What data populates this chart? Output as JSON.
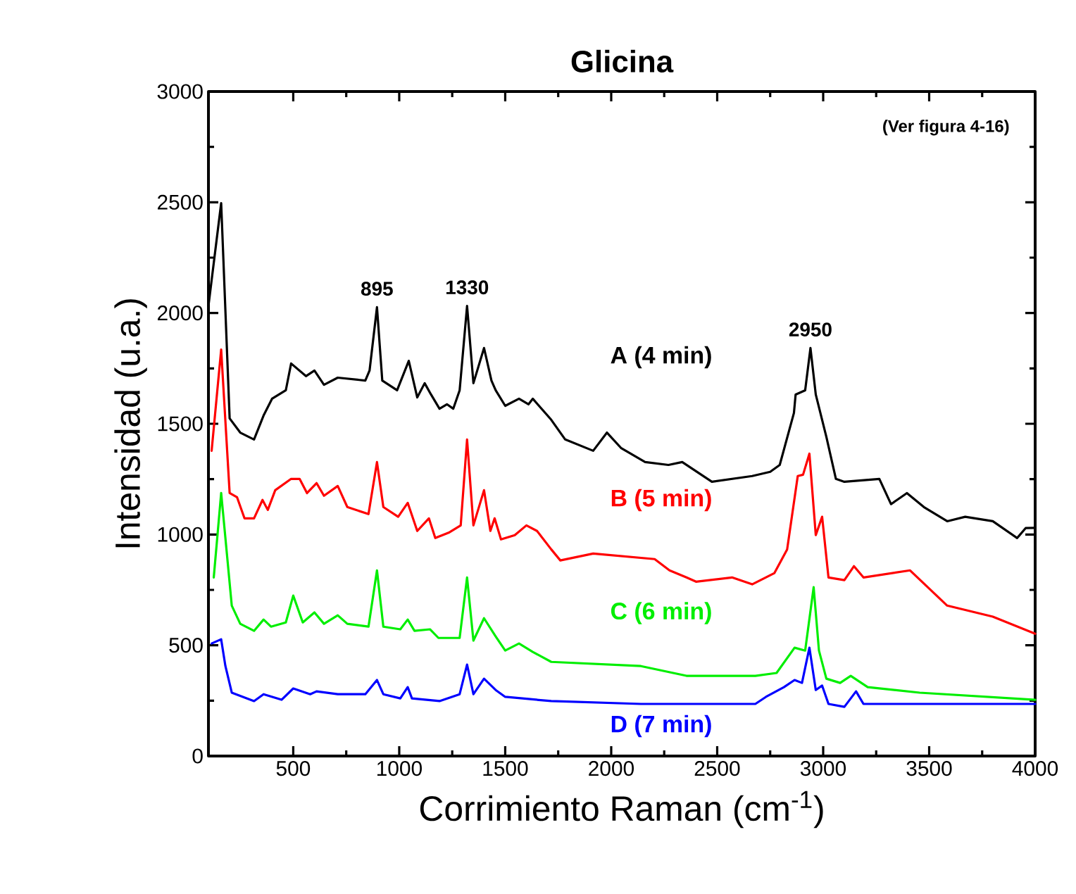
{
  "chart_data": {
    "type": "line",
    "title": "Glicina",
    "xlabel": "Corrimiento Raman (cm$^{-1}$)",
    "ylabel": "Intensidad (u.a.)",
    "xlim": [
      100,
      4000
    ],
    "xticks": [
      500,
      1000,
      1500,
      2000,
      2500,
      3000,
      3500,
      4000
    ],
    "ylim": [
      0,
      3000
    ],
    "yticks": [
      0,
      500,
      1000,
      1500,
      2000,
      2500,
      3000
    ],
    "line_style": "solid",
    "annotations": [
      {
        "text": "895",
        "x": 895,
        "y": 2026
      },
      {
        "text": "1330",
        "x": 1320,
        "y": 2032
      },
      {
        "text": "2950",
        "x": 2940,
        "y": 1842
      },
      "(Ver figura 4-16)"
    ],
    "series": [
      {
        "name": "A (4 min)",
        "color": "#000000",
        "x": [
          100,
          160,
          200,
          250,
          315,
          360,
          400,
          465,
          490,
          560,
          600,
          645,
          710,
          840,
          860,
          895,
          920,
          990,
          1045,
          1085,
          1120,
          1150,
          1190,
          1225,
          1255,
          1285,
          1320,
          1350,
          1400,
          1435,
          1455,
          1500,
          1565,
          1610,
          1630,
          1717,
          1783,
          1915,
          1980,
          2046,
          2160,
          2270,
          2335,
          2475,
          2665,
          2750,
          2795,
          2862,
          2870,
          2915,
          2940,
          2965,
          3015,
          3060,
          3100,
          3265,
          3320,
          3395,
          3475,
          3585,
          3670,
          3800,
          3915,
          3955,
          4000
        ],
        "values": [
          2032,
          2496,
          1524,
          1460,
          1429,
          1537,
          1613,
          1651,
          1772,
          1715,
          1740,
          1676,
          1708,
          1695,
          1740,
          2026,
          1695,
          1651,
          1784,
          1619,
          1683,
          1632,
          1568,
          1588,
          1568,
          1651,
          2032,
          1683,
          1842,
          1695,
          1651,
          1581,
          1613,
          1588,
          1613,
          1518,
          1429,
          1378,
          1460,
          1391,
          1327,
          1314,
          1327,
          1238,
          1264,
          1283,
          1314,
          1549,
          1632,
          1651,
          1842,
          1632,
          1441,
          1251,
          1238,
          1251,
          1137,
          1187,
          1124,
          1060,
          1080,
          1060,
          984,
          1029,
          1030
        ]
      },
      {
        "name": "B (5 min)",
        "color": "#ff0000",
        "x": [
          115,
          160,
          200,
          235,
          270,
          315,
          355,
          380,
          415,
          490,
          530,
          565,
          610,
          645,
          710,
          755,
          855,
          895,
          925,
          995,
          1040,
          1085,
          1140,
          1170,
          1237,
          1290,
          1320,
          1350,
          1400,
          1430,
          1450,
          1480,
          1545,
          1600,
          1650,
          1717,
          1760,
          1915,
          2205,
          2275,
          2355,
          2400,
          2570,
          2665,
          2770,
          2830,
          2880,
          2905,
          2935,
          2965,
          2995,
          3025,
          3100,
          3145,
          3190,
          3410,
          3585,
          3800,
          4000
        ],
        "values": [
          1378,
          1835,
          1187,
          1168,
          1073,
          1073,
          1156,
          1111,
          1200,
          1251,
          1251,
          1187,
          1232,
          1175,
          1219,
          1124,
          1092,
          1327,
          1124,
          1080,
          1143,
          1016,
          1073,
          984,
          1010,
          1041,
          1429,
          1041,
          1200,
          1016,
          1073,
          978,
          997,
          1041,
          1016,
          933,
          883,
          914,
          889,
          838,
          806,
          787,
          806,
          775,
          826,
          933,
          1264,
          1270,
          1365,
          997,
          1080,
          806,
          794,
          857,
          806,
          838,
          679,
          629,
          552
        ]
      },
      {
        "name": "C (6 min)",
        "color": "#00ee00",
        "x": [
          125,
          160,
          210,
          250,
          315,
          360,
          395,
          465,
          500,
          545,
          600,
          645,
          710,
          755,
          855,
          895,
          925,
          1005,
          1040,
          1072,
          1145,
          1185,
          1285,
          1320,
          1350,
          1400,
          1455,
          1500,
          1565,
          1630,
          1717,
          2140,
          2355,
          2680,
          2780,
          2865,
          2915,
          2955,
          2980,
          3015,
          3080,
          3130,
          3210,
          3455,
          4000
        ],
        "values": [
          806,
          1187,
          679,
          597,
          565,
          616,
          584,
          603,
          724,
          603,
          648,
          597,
          635,
          597,
          584,
          838,
          584,
          572,
          616,
          565,
          572,
          533,
          533,
          806,
          521,
          622,
          540,
          476,
          508,
          470,
          425,
          406,
          362,
          362,
          375,
          489,
          476,
          762,
          476,
          349,
          330,
          362,
          311,
          286,
          254
        ]
      },
      {
        "name": "D (7 min)",
        "color": "#0000ff",
        "x": [
          115,
          160,
          180,
          210,
          315,
          360,
          445,
          500,
          580,
          610,
          710,
          840,
          895,
          925,
          1005,
          1040,
          1060,
          1190,
          1285,
          1320,
          1350,
          1400,
          1455,
          1500,
          1717,
          2140,
          2680,
          2730,
          2815,
          2865,
          2900,
          2935,
          2965,
          2995,
          3025,
          3100,
          3155,
          3190,
          4000
        ],
        "values": [
          508,
          527,
          406,
          286,
          248,
          279,
          254,
          305,
          279,
          292,
          279,
          279,
          343,
          279,
          260,
          311,
          260,
          248,
          279,
          413,
          279,
          349,
          298,
          267,
          248,
          235,
          235,
          267,
          311,
          343,
          330,
          489,
          298,
          318,
          235,
          222,
          292,
          235,
          235
        ]
      }
    ]
  }
}
